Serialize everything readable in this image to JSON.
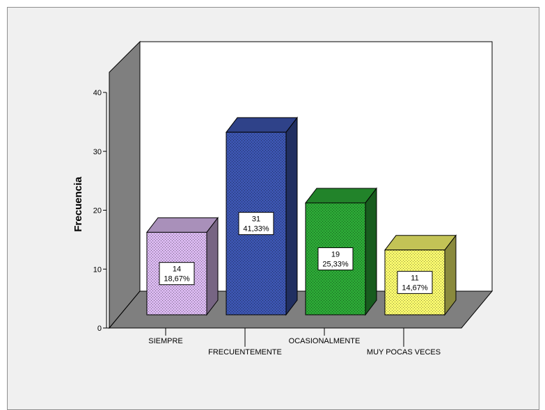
{
  "chart_data": {
    "type": "bar",
    "style": "3d",
    "title": "",
    "xlabel": "",
    "ylabel": "Frecuencia",
    "ylim": [
      0,
      40
    ],
    "yticks": [
      0,
      10,
      20,
      30,
      40
    ],
    "categories": [
      "SIEMPRE",
      "FRECUENTEMENTE",
      "OCASIONALMENTE",
      "MUY POCAS VECES"
    ],
    "values": [
      14,
      31,
      19,
      11
    ],
    "percent_labels": [
      "18,67%",
      "41,33%",
      "25,33%",
      "14,67%"
    ],
    "colors": [
      "#d9b8ef",
      "#3c55b0",
      "#2ca836",
      "#fafa6e"
    ],
    "grid": false,
    "legend": "none"
  }
}
